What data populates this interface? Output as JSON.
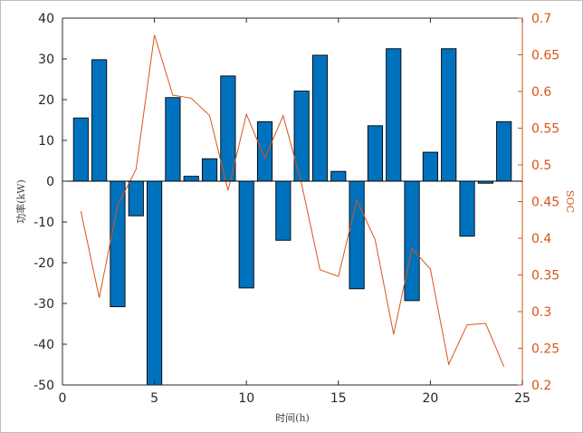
{
  "chart_data": {
    "type": "bar",
    "title": "",
    "xlabel": "时间(h)",
    "ylabel_left": "功率(kW)",
    "ylabel_right": "SOC",
    "xlim": [
      0,
      25
    ],
    "ylim_left": [
      -50,
      40
    ],
    "ylim_right": [
      0.2,
      0.7
    ],
    "x_ticks": [
      "0",
      "5",
      "10",
      "15",
      "20",
      "25"
    ],
    "y_ticks_left": [
      "40",
      "30",
      "20",
      "10",
      "0",
      "-10",
      "-20",
      "-30",
      "-40",
      "-50"
    ],
    "y_ticks_right": [
      "0.7",
      "0.65",
      "0.6",
      "0.55",
      "0.5",
      "0.45",
      "0.4",
      "0.35",
      "0.3",
      "0.25",
      "0.2"
    ],
    "grid": false,
    "x": [
      1,
      2,
      3,
      4,
      5,
      6,
      7,
      8,
      9,
      10,
      11,
      12,
      13,
      14,
      15,
      16,
      17,
      18,
      19,
      20,
      21,
      22,
      23,
      24
    ],
    "series": [
      {
        "type": "bar",
        "axis": "left",
        "color": "#0072BD",
        "values": [
          15.5,
          29.8,
          -30.8,
          -8.5,
          -50,
          20.5,
          1.2,
          5.5,
          25.8,
          -26.2,
          14.6,
          -14.5,
          22.1,
          30.9,
          2.4,
          -26.4,
          13.6,
          32.5,
          -29.3,
          7.1,
          32.5,
          -13.5,
          -0.5,
          14.6
        ]
      },
      {
        "type": "line",
        "axis": "right",
        "color": "#D95319",
        "values": [
          0.437,
          0.319,
          0.445,
          0.494,
          0.677,
          0.595,
          0.591,
          0.567,
          0.465,
          0.569,
          0.509,
          0.567,
          0.474,
          0.357,
          0.348,
          0.452,
          0.398,
          0.269,
          0.386,
          0.358,
          0.228,
          0.282,
          0.284,
          0.225
        ]
      }
    ]
  }
}
